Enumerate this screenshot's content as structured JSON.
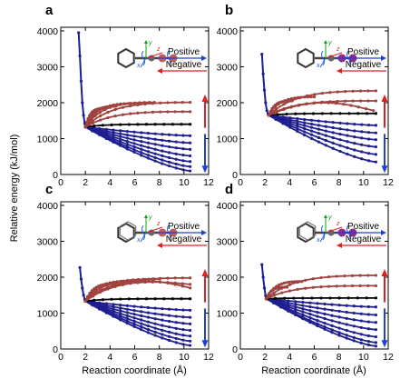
{
  "figure": {
    "xlabel": "Reaction coordinate (Å)",
    "ylabel": "Relative energy (kJ/mol)",
    "legend": {
      "positive": "Positive",
      "negative": "Negative"
    },
    "colors": {
      "curve_red": "#a0423f",
      "curve_black": "#000000",
      "curve_blue": "#1f1f8f",
      "arrow_red": "#e02020",
      "arrow_blue": "#2040d0",
      "inset_y": "#10a010",
      "inset_z": "#e02020",
      "inset_x": "#2060e0"
    },
    "inset_axes": {
      "y": "y",
      "z": "z",
      "x": "x"
    }
  },
  "chart_data": [
    {
      "panel": "a",
      "type": "line",
      "xlim": [
        0,
        12
      ],
      "ylim": [
        0,
        4100
      ],
      "xticks": [
        0,
        2,
        4,
        6,
        8,
        10,
        12
      ],
      "yticks": [
        0,
        1000,
        2000,
        3000,
        4000
      ],
      "minimum": {
        "x": 2.0,
        "y": 1320
      },
      "steep": [
        [
          1.45,
          3950
        ],
        [
          1.55,
          3300
        ],
        [
          1.65,
          2600
        ],
        [
          1.75,
          2000
        ],
        [
          1.85,
          1650
        ],
        [
          1.95,
          1420
        ]
      ],
      "red_series": [
        {
          "end_x": 10.5,
          "end_y": 2010,
          "hump": 0.05
        },
        {
          "end_x": 10.5,
          "end_y": 1750,
          "hump": 0.05
        },
        {
          "end_x": 7.6,
          "end_y": 2010,
          "hump": 0.05
        },
        {
          "end_x": 6.0,
          "end_y": 1980,
          "hump": 0.05
        },
        {
          "end_x": 4.5,
          "end_y": 1900,
          "hump": 0.05
        },
        {
          "end_x": 3.5,
          "end_y": 1840,
          "hump": 0.05
        }
      ],
      "black_series": {
        "end_x": 10.5,
        "end_y": 1400
      },
      "blue_ends": [
        1080,
        880,
        700,
        520,
        360,
        220,
        100
      ],
      "blue_end_x": 10.5
    },
    {
      "panel": "b",
      "type": "line",
      "xlim": [
        0,
        12
      ],
      "ylim": [
        0,
        4100
      ],
      "xticks": [
        0,
        2,
        4,
        6,
        8,
        10,
        12
      ],
      "yticks": [
        0,
        1000,
        2000,
        3000,
        4000
      ],
      "minimum": {
        "x": 2.3,
        "y": 1650
      },
      "steep": [
        [
          1.75,
          3350
        ],
        [
          1.85,
          2800
        ],
        [
          1.95,
          2350
        ],
        [
          2.05,
          2000
        ],
        [
          2.15,
          1780
        ],
        [
          2.25,
          1680
        ]
      ],
      "red_series": [
        {
          "end_x": 11.0,
          "end_y": 2330,
          "hump": 0.05
        },
        {
          "end_x": 11.0,
          "end_y": 2050,
          "hump": 0.05
        },
        {
          "end_x": 10.8,
          "end_y": 1780,
          "hump": 0.9
        },
        {
          "end_x": 6.0,
          "end_y": 2160,
          "hump": 0.05
        },
        {
          "end_x": 4.2,
          "end_y": 2050,
          "hump": 0.05
        }
      ],
      "black_series": {
        "end_x": 11.0,
        "end_y": 1700
      },
      "blue_ends": [
        1370,
        1160,
        970,
        770,
        560,
        350
      ],
      "blue_end_x": 11.0
    },
    {
      "panel": "c",
      "type": "line",
      "xlim": [
        0,
        12
      ],
      "ylim": [
        0,
        4100
      ],
      "xticks": [
        0,
        2,
        4,
        6,
        8,
        10,
        12
      ],
      "yticks": [
        0,
        1000,
        2000,
        3000,
        4000
      ],
      "minimum": {
        "x": 2.0,
        "y": 1330
      },
      "steep": [
        [
          1.55,
          2270
        ],
        [
          1.65,
          1950
        ],
        [
          1.75,
          1700
        ],
        [
          1.85,
          1500
        ],
        [
          1.95,
          1380
        ]
      ],
      "red_series": [
        {
          "end_x": 10.5,
          "end_y": 1980,
          "hump": 0.05
        },
        {
          "end_x": 10.5,
          "end_y": 1800,
          "hump": 0.4
        },
        {
          "end_x": 10.5,
          "end_y": 1700,
          "hump": 0.9
        },
        {
          "end_x": 8.0,
          "end_y": 1950,
          "hump": 0.05
        },
        {
          "end_x": 6.0,
          "end_y": 1900,
          "hump": 0.05
        },
        {
          "end_x": 4.5,
          "end_y": 1820,
          "hump": 0.05
        }
      ],
      "black_series": {
        "end_x": 10.5,
        "end_y": 1400
      },
      "blue_ends": [
        1080,
        880,
        700,
        520,
        360,
        220,
        100
      ],
      "blue_end_x": 10.5
    },
    {
      "panel": "d",
      "type": "line",
      "xlim": [
        0,
        12
      ],
      "ylim": [
        0,
        4100
      ],
      "xticks": [
        0,
        2,
        4,
        6,
        8,
        10,
        12
      ],
      "yticks": [
        0,
        1000,
        2000,
        3000,
        4000
      ],
      "minimum": {
        "x": 2.1,
        "y": 1400
      },
      "steep": [
        [
          1.75,
          2350
        ],
        [
          1.85,
          2000
        ],
        [
          1.95,
          1700
        ],
        [
          2.05,
          1480
        ]
      ],
      "red_series": [
        {
          "end_x": 11.0,
          "end_y": 2050,
          "hump": 0.05
        },
        {
          "end_x": 11.0,
          "end_y": 1760,
          "hump": 0.05
        },
        {
          "end_x": 5.0,
          "end_y": 1880,
          "hump": 0.05
        },
        {
          "end_x": 3.8,
          "end_y": 1720,
          "hump": 0.05
        }
      ],
      "black_series": {
        "end_x": 11.0,
        "end_y": 1420
      },
      "blue_ends": [
        1170,
        950,
        740,
        540,
        340,
        180,
        80
      ],
      "blue_end_x": 11.0
    }
  ]
}
